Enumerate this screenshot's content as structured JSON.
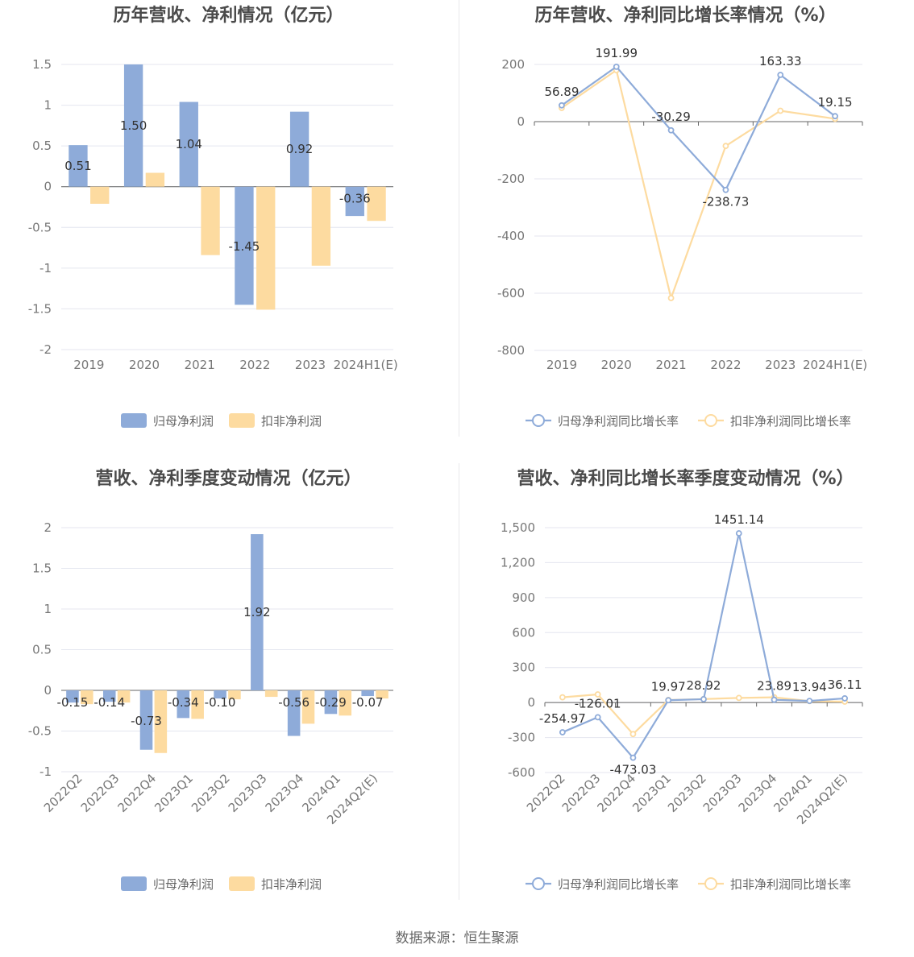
{
  "source_text": "数据来源：恒生聚源",
  "chart_data": [
    {
      "id": "annual-profit",
      "type": "bar",
      "title": "历年营收、净利情况（亿元）",
      "categories": [
        "2019",
        "2020",
        "2021",
        "2022",
        "2023",
        "2024H1(E)"
      ],
      "yticks": [
        "1.5",
        "1",
        "0.5",
        "0",
        "-0.5",
        "-1",
        "-1.5",
        "-2"
      ],
      "ylim": [
        -2,
        1.5
      ],
      "grid": true,
      "legend_position": "bottom",
      "colors": [
        "#8eabd9",
        "#fddba0"
      ],
      "series": [
        {
          "name": "归母净利润",
          "values": [
            0.51,
            1.5,
            1.04,
            -1.45,
            0.92,
            -0.36
          ],
          "labels": [
            "0.51",
            "1.50",
            "1.04",
            "-1.45",
            "0.92",
            "-0.36"
          ]
        },
        {
          "name": "扣非净利润",
          "values": [
            -0.21,
            0.17,
            -0.84,
            -1.51,
            -0.97,
            -0.42
          ]
        }
      ]
    },
    {
      "id": "annual-growth",
      "type": "line",
      "title": "历年营收、净利同比增长率情况（%）",
      "categories": [
        "2019",
        "2020",
        "2021",
        "2022",
        "2023",
        "2024H1(E)"
      ],
      "yticks": [
        "200",
        "0",
        "-200",
        "-400",
        "-600",
        "-800"
      ],
      "ylim": [
        -800,
        200
      ],
      "grid": true,
      "legend_position": "bottom",
      "colors": [
        "#8eabd9",
        "#fddba0"
      ],
      "series": [
        {
          "name": "归母净利润同比增长率",
          "values": [
            56.89,
            191.99,
            -30.29,
            -238.73,
            163.33,
            19.15
          ],
          "labels": [
            "56.89",
            "191.99",
            "-30.29",
            "-238.73",
            "163.33",
            "19.15"
          ]
        },
        {
          "name": "扣非净利润同比增长率",
          "values": [
            48,
            180,
            -617,
            -85,
            38,
            10
          ]
        }
      ]
    },
    {
      "id": "quarterly-profit",
      "type": "bar",
      "title": "营收、净利季度变动情况（亿元）",
      "categories": [
        "2022Q2",
        "2022Q3",
        "2022Q4",
        "2023Q1",
        "2023Q2",
        "2023Q3",
        "2023Q4",
        "2024Q1",
        "2024Q2(E)"
      ],
      "yticks": [
        "2",
        "1.5",
        "1",
        "0.5",
        "0",
        "-0.5",
        "-1"
      ],
      "ylim": [
        -1,
        2
      ],
      "grid": true,
      "legend_position": "bottom",
      "colors": [
        "#8eabd9",
        "#fddba0"
      ],
      "series": [
        {
          "name": "归母净利润",
          "values": [
            -0.15,
            -0.14,
            -0.73,
            -0.34,
            -0.1,
            1.92,
            -0.56,
            -0.29,
            -0.07
          ],
          "labels": [
            "-0.15",
            "-0.14",
            "-0.73",
            "-0.34",
            "-0.10",
            "1.92",
            "-0.56",
            "-0.29",
            "-0.07"
          ]
        },
        {
          "name": "扣非净利润",
          "values": [
            -0.17,
            -0.15,
            -0.77,
            -0.35,
            -0.11,
            -0.08,
            -0.41,
            -0.31,
            -0.1
          ]
        }
      ]
    },
    {
      "id": "quarterly-growth",
      "type": "line",
      "title": "营收、净利同比增长率季度变动情况（%）",
      "categories": [
        "2022Q2",
        "2022Q3",
        "2022Q4",
        "2023Q1",
        "2023Q2",
        "2023Q3",
        "2023Q4",
        "2024Q1",
        "2024Q2(E)"
      ],
      "yticks": [
        "1,500",
        "1,200",
        "900",
        "600",
        "300",
        "0",
        "-300",
        "-600"
      ],
      "ylim": [
        -600,
        1500
      ],
      "grid": true,
      "legend_position": "bottom",
      "colors": [
        "#8eabd9",
        "#fddba0"
      ],
      "series": [
        {
          "name": "归母净利润同比增长率",
          "values": [
            -254.97,
            -126.01,
            -473.03,
            19.97,
            28.92,
            1451.14,
            23.89,
            13.94,
            36.11
          ],
          "labels": [
            "-254.97",
            "-126.01",
            "-473.03",
            "19.97",
            "28.92",
            "1451.14",
            "23.89",
            "13.94",
            "36.11"
          ]
        },
        {
          "name": "扣非净利润同比增长率",
          "values": [
            45,
            70,
            -270,
            22,
            30,
            40,
            45,
            12,
            8
          ]
        }
      ]
    }
  ]
}
